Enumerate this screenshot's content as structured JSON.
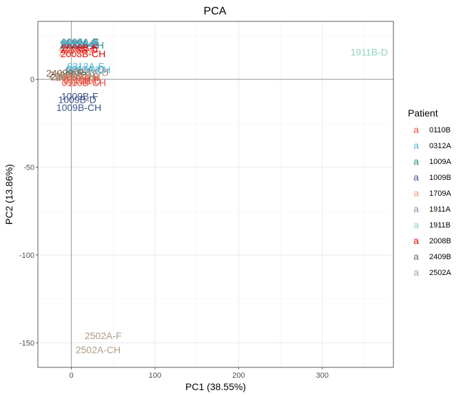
{
  "chart_data": {
    "type": "scatter",
    "title": "PCA",
    "xlabel": "PC1 (38.55%)",
    "ylabel": "PC2 (13.86%)",
    "xlim": [
      -40,
      385
    ],
    "ylim": [
      -164,
      33
    ],
    "xticks": [
      0,
      100,
      200,
      300
    ],
    "yticks": [
      0,
      -50,
      -100,
      -150
    ],
    "grid": true,
    "reference_lines": {
      "x": 0,
      "y": 0
    },
    "legend": {
      "title": "Patient",
      "position": "right",
      "key_glyph": "a"
    },
    "colors": {
      "0110B": "#e8503f",
      "0312A": "#4fb7d0",
      "1009A": "#1f8f85",
      "1009B": "#3c5488",
      "1709A": "#f39b7f",
      "1911A": "#8491b4",
      "1911B": "#91d1c2",
      "2008B": "#dc0000",
      "2409B": "#7e6148",
      "2502A": "#b09c85"
    },
    "patients": [
      "0110B",
      "0312A",
      "1009A",
      "1009B",
      "1709A",
      "1911A",
      "1911B",
      "2008B",
      "2409B",
      "2502A"
    ],
    "points": [
      {
        "label": "1009A-F",
        "patient": "1009A",
        "x": 10,
        "y": 21.5
      },
      {
        "label": "1009A-D",
        "patient": "1009A",
        "x": 9,
        "y": 20.5
      },
      {
        "label": "1009A-CH",
        "patient": "1009A",
        "x": 12,
        "y": 19.5
      },
      {
        "label": "1911A-F",
        "patient": "1911A",
        "x": 11,
        "y": 21
      },
      {
        "label": "1911A-D",
        "patient": "1911A",
        "x": 9,
        "y": 20
      },
      {
        "label": "0312A-F",
        "patient": "0312A",
        "x": 11,
        "y": 20.5
      },
      {
        "label": "0312A-D",
        "patient": "0312A",
        "x": 10,
        "y": 19.5
      },
      {
        "label": "2008B-F",
        "patient": "2008B",
        "x": 10,
        "y": 18
      },
      {
        "label": "2008B-D",
        "patient": "2008B",
        "x": 9,
        "y": 17
      },
      {
        "label": "2008B-CH",
        "patient": "2008B",
        "x": 14,
        "y": 14.5
      },
      {
        "label": "1709A-F",
        "patient": "1709A",
        "x": 6,
        "y": 15.5
      },
      {
        "label": "0312A-F",
        "patient": "0312A",
        "x": 17,
        "y": 7.5
      },
      {
        "label": "0312A-D",
        "patient": "0312A",
        "x": 17,
        "y": 6
      },
      {
        "label": "0312A-CH",
        "patient": "0312A",
        "x": 20,
        "y": 5.5
      },
      {
        "label": "1911A-CH",
        "patient": "1911A",
        "x": 18,
        "y": 4.5
      },
      {
        "label": "2502A-D",
        "patient": "2502A",
        "x": 22,
        "y": 4
      },
      {
        "label": "2409B-F",
        "patient": "2409B",
        "x": -8,
        "y": 3.5
      },
      {
        "label": "2409B-D",
        "patient": "2409B",
        "x": -4,
        "y": 2.5
      },
      {
        "label": "2409B-CH",
        "patient": "2409B",
        "x": 2,
        "y": 1.5
      },
      {
        "label": "1709A-CH",
        "patient": "1709A",
        "x": 8,
        "y": 1
      },
      {
        "label": "2502A-CH",
        "patient": "2502A",
        "x": 6,
        "y": 1.5
      },
      {
        "label": "0110B-F",
        "patient": "0110B",
        "x": 12,
        "y": 0
      },
      {
        "label": "0110B-D",
        "patient": "0110B",
        "x": 13,
        "y": -1
      },
      {
        "label": "0110B-CH",
        "patient": "0110B",
        "x": 15,
        "y": -2
      },
      {
        "label": "1009B-F",
        "patient": "1009B",
        "x": 10,
        "y": -9.5
      },
      {
        "label": "1009B-D",
        "patient": "1009B",
        "x": 7,
        "y": -11.5
      },
      {
        "label": "1009B-CH",
        "patient": "1009B",
        "x": 9,
        "y": -16
      },
      {
        "label": "1911B-D",
        "patient": "1911B",
        "x": 356,
        "y": 15.5
      },
      {
        "label": "2502A-F",
        "patient": "2502A",
        "x": 38,
        "y": -146
      },
      {
        "label": "2502A-CH",
        "patient": "2502A",
        "x": 32,
        "y": -154
      }
    ]
  }
}
